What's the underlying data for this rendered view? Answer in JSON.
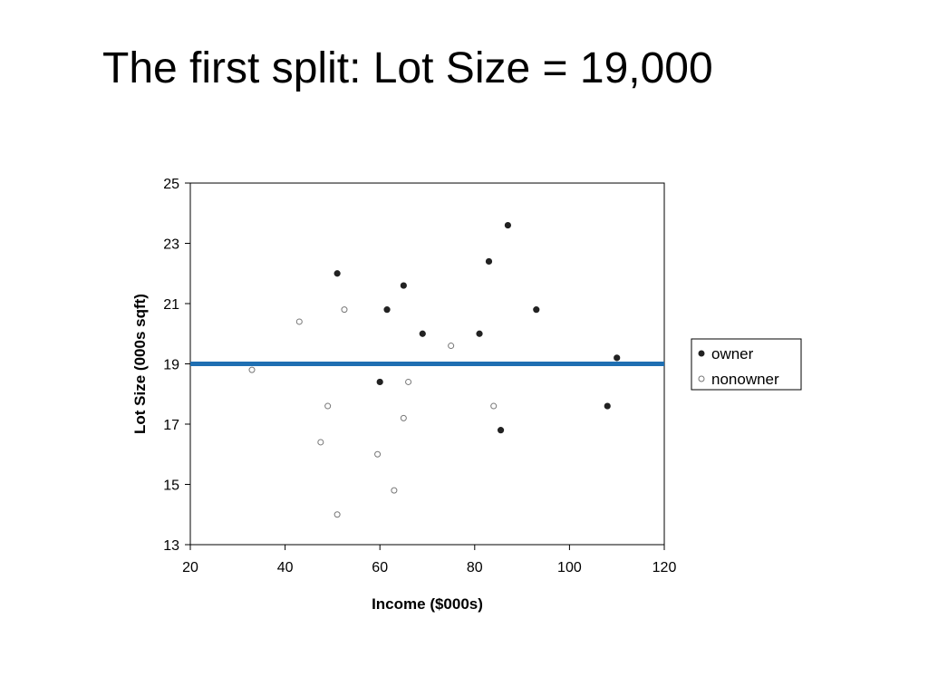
{
  "slide": {
    "title": "The first split: Lot Size = 19,000"
  },
  "chart_data": {
    "type": "scatter",
    "xlabel": "Income ($000s)",
    "ylabel": "Lot Size (000s sqft)",
    "xlim": [
      20,
      120
    ],
    "ylim": [
      13,
      25
    ],
    "xticks": [
      20,
      40,
      60,
      80,
      100,
      120
    ],
    "yticks": [
      13,
      15,
      17,
      19,
      21,
      23,
      25
    ],
    "grid": false,
    "legend_position": "right",
    "series": [
      {
        "name": "owner",
        "marker": "filled-circle",
        "color": "#222222",
        "points": [
          [
            51,
            22.0
          ],
          [
            61.5,
            20.8
          ],
          [
            65,
            21.6
          ],
          [
            69,
            20.0
          ],
          [
            81,
            20.0
          ],
          [
            83,
            22.4
          ],
          [
            87,
            23.6
          ],
          [
            93,
            20.8
          ],
          [
            110,
            19.2
          ],
          [
            60,
            18.4
          ],
          [
            108,
            17.6
          ],
          [
            85.5,
            16.8
          ]
        ]
      },
      {
        "name": "nonowner",
        "marker": "open-circle",
        "color": "#777777",
        "points": [
          [
            43,
            20.4
          ],
          [
            52.5,
            20.8
          ],
          [
            75,
            19.6
          ],
          [
            33,
            18.8
          ],
          [
            49,
            17.6
          ],
          [
            66,
            18.4
          ],
          [
            65,
            17.2
          ],
          [
            84,
            17.6
          ],
          [
            47.5,
            16.4
          ],
          [
            59.5,
            16.0
          ],
          [
            63,
            14.8
          ],
          [
            51,
            14.0
          ]
        ]
      }
    ],
    "split_line": {
      "axis": "y",
      "value": 19,
      "color": "#1f6fb2"
    }
  }
}
